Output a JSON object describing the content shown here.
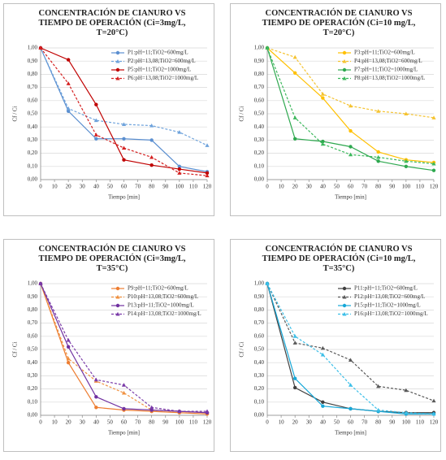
{
  "chart_data": [
    {
      "type": "line",
      "title": "CONCENTRACIÓN DE CIANURO VS TIEMPO DE OPERACIÓN (Ci=3mg/L, T=20°C)",
      "xlabel": "Tiempo [min]",
      "ylabel": "Cf / Ci",
      "x": [
        0,
        20,
        40,
        60,
        80,
        100,
        120
      ],
      "xlim": [
        0,
        120
      ],
      "xticks": [
        0,
        10,
        20,
        30,
        40,
        50,
        60,
        70,
        80,
        90,
        100,
        110,
        120
      ],
      "ylim": [
        0,
        1
      ],
      "yticks": [
        {
          "value": 0,
          "label": "0,00"
        },
        {
          "value": 0.1,
          "label": "0,10"
        },
        {
          "value": 0.2,
          "label": "0,20"
        },
        {
          "value": 0.3,
          "label": "0,30"
        },
        {
          "value": 0.4,
          "label": "0,40"
        },
        {
          "value": 0.5,
          "label": "0,50"
        },
        {
          "value": 0.6,
          "label": "0,60"
        },
        {
          "value": 0.7,
          "label": "0,70"
        },
        {
          "value": 0.8,
          "label": "0,80"
        },
        {
          "value": 0.9,
          "label": "0,90"
        },
        {
          "value": 1,
          "label": "1,00"
        }
      ],
      "grid": true,
      "legend": "upper right",
      "series": [
        {
          "name": "P1:pH=11;TiO2=600mg/L",
          "color": "#5b8fd0",
          "dashed": false,
          "marker": "circle",
          "values": [
            1.0,
            0.52,
            0.31,
            0.31,
            0.3,
            0.1,
            0.06
          ]
        },
        {
          "name": "P2:pH=13,08;TiO2=600mg/L",
          "color": "#6fa3dc",
          "dashed": true,
          "marker": "triangle",
          "values": [
            1.0,
            0.54,
            0.45,
            0.42,
            0.41,
            0.36,
            0.26
          ]
        },
        {
          "name": "P5:pH=11;TiO2=1000mg/L",
          "color": "#c00000",
          "dashed": false,
          "marker": "circle",
          "values": [
            1.0,
            0.91,
            0.57,
            0.15,
            0.11,
            0.08,
            0.05
          ]
        },
        {
          "name": "P6:pH=13,08;TiO2=1000mg/L",
          "color": "#d42020",
          "dashed": true,
          "marker": "triangle",
          "values": [
            1.0,
            0.73,
            0.34,
            0.24,
            0.17,
            0.05,
            0.03
          ]
        }
      ]
    },
    {
      "type": "line",
      "title": "CONCENTRACIÓN DE CIANURO VS TIEMPO DE OPERACIÓN (Ci=10 mg/L, T=20°C)",
      "xlabel": "Tiempo [min]",
      "ylabel": "Cf / Ci",
      "x": [
        0,
        20,
        40,
        60,
        80,
        100,
        120
      ],
      "xlim": [
        0,
        120
      ],
      "xticks": [
        0,
        10,
        20,
        30,
        40,
        50,
        60,
        70,
        80,
        90,
        100,
        110,
        120
      ],
      "ylim": [
        0,
        1
      ],
      "yticks": [
        {
          "value": 0,
          "label": "0,00"
        },
        {
          "value": 0.1,
          "label": "0,10"
        },
        {
          "value": 0.2,
          "label": "0,20"
        },
        {
          "value": 0.3,
          "label": "0,30"
        },
        {
          "value": 0.4,
          "label": "0,40"
        },
        {
          "value": 0.5,
          "label": "0,50"
        },
        {
          "value": 0.6,
          "label": "0,60"
        },
        {
          "value": 0.7,
          "label": "0,70"
        },
        {
          "value": 0.8,
          "label": "0,80"
        },
        {
          "value": 0.9,
          "label": "0,90"
        },
        {
          "value": 1,
          "label": "1,00"
        }
      ],
      "grid": true,
      "legend": "upper right",
      "series": [
        {
          "name": "P3:pH=11;TiO2=600mg/L",
          "color": "#ffc000",
          "dashed": false,
          "marker": "circle",
          "values": [
            1.0,
            0.81,
            0.62,
            0.37,
            0.21,
            0.15,
            0.13
          ]
        },
        {
          "name": "P4:pH=13,08;TiO2=600mg/L",
          "color": "#f5c330",
          "dashed": true,
          "marker": "triangle",
          "values": [
            1.0,
            0.93,
            0.65,
            0.56,
            0.52,
            0.5,
            0.47
          ]
        },
        {
          "name": "P7:pH=11;TiO2=1000mg/L",
          "color": "#2ea84f",
          "dashed": false,
          "marker": "circle",
          "values": [
            1.0,
            0.31,
            0.29,
            0.25,
            0.14,
            0.1,
            0.07
          ]
        },
        {
          "name": "P8:pH=13,08;TiO2=1000mg/L",
          "color": "#3cb85c",
          "dashed": true,
          "marker": "triangle",
          "values": [
            1.0,
            0.47,
            0.27,
            0.19,
            0.17,
            0.14,
            0.12
          ]
        }
      ]
    },
    {
      "type": "line",
      "title": "CONCENTRACIÓN DE CIANURO VS TIEMPO DE OPERACIÓN (Ci=3mg/L, T=35°C)",
      "xlabel": "Tiempo [min]",
      "ylabel": "Cf / Ci",
      "x": [
        0,
        20,
        40,
        60,
        80,
        100,
        120
      ],
      "xlim": [
        0,
        120
      ],
      "xticks": [
        0,
        10,
        20,
        30,
        40,
        50,
        60,
        70,
        80,
        90,
        100,
        110,
        120
      ],
      "ylim": [
        0,
        1
      ],
      "yticks": [
        {
          "value": 0,
          "label": "0,00"
        },
        {
          "value": 0.1,
          "label": "0,10"
        },
        {
          "value": 0.2,
          "label": "0,20"
        },
        {
          "value": 0.3,
          "label": "0,30"
        },
        {
          "value": 0.4,
          "label": "0,40"
        },
        {
          "value": 0.5,
          "label": "0,50"
        },
        {
          "value": 0.6,
          "label": "0,60"
        },
        {
          "value": 0.7,
          "label": "0,70"
        },
        {
          "value": 0.8,
          "label": "0,80"
        },
        {
          "value": 0.9,
          "label": "0,90"
        },
        {
          "value": 1,
          "label": "1,00"
        }
      ],
      "grid": true,
      "legend": "upper right",
      "series": [
        {
          "name": "P9:pH=11;TiO2=600mg/L",
          "color": "#ed7d31",
          "dashed": false,
          "marker": "circle",
          "values": [
            1.0,
            0.4,
            0.06,
            0.04,
            0.03,
            0.02,
            0.01
          ]
        },
        {
          "name": "P10:pH=13,08;TiO2=600mg/L",
          "color": "#f0903f",
          "dashed": true,
          "marker": "triangle",
          "values": [
            1.0,
            0.43,
            0.26,
            0.17,
            0.04,
            0.03,
            0.02
          ]
        },
        {
          "name": "P13:pH=11;TiO2=1000mg/L",
          "color": "#7030a0",
          "dashed": false,
          "marker": "circle",
          "values": [
            1.0,
            0.52,
            0.14,
            0.05,
            0.04,
            0.03,
            0.02
          ]
        },
        {
          "name": "P14:pH=13,08;TiO2=1000mg/L",
          "color": "#7a3aa8",
          "dashed": true,
          "marker": "triangle",
          "values": [
            1.0,
            0.57,
            0.27,
            0.23,
            0.06,
            0.03,
            0.03
          ]
        }
      ]
    },
    {
      "type": "line",
      "title": "CONCENTRACIÓN DE CIANURO VS TIEMPO DE OPERACIÓN (Ci=10 mg/L, T=35°C)",
      "xlabel": "Tiempo [min]",
      "ylabel": "Cf / Ci",
      "x": [
        0,
        20,
        40,
        60,
        80,
        100,
        120
      ],
      "xlim": [
        0,
        120
      ],
      "xticks": [
        0,
        10,
        20,
        30,
        40,
        50,
        60,
        70,
        80,
        90,
        100,
        110,
        120
      ],
      "ylim": [
        0,
        1
      ],
      "yticks": [
        {
          "value": 0,
          "label": "0,00"
        },
        {
          "value": 0.1,
          "label": "0,10"
        },
        {
          "value": 0.2,
          "label": "0,20"
        },
        {
          "value": 0.3,
          "label": "0,30"
        },
        {
          "value": 0.4,
          "label": "0,40"
        },
        {
          "value": 0.5,
          "label": "0,50"
        },
        {
          "value": 0.6,
          "label": "0,60"
        },
        {
          "value": 0.7,
          "label": "0,70"
        },
        {
          "value": 0.8,
          "label": "0,80"
        },
        {
          "value": 0.9,
          "label": "0,90"
        },
        {
          "value": 1,
          "label": "1,00"
        }
      ],
      "grid": true,
      "legend": "upper right",
      "series": [
        {
          "name": "P11:pH=11;TiO2=600mg/L",
          "color": "#404040",
          "dashed": false,
          "marker": "circle",
          "values": [
            1.0,
            0.21,
            0.1,
            0.05,
            0.03,
            0.02,
            0.02
          ]
        },
        {
          "name": "P12:pH=13,08;TiO2=600mg/L",
          "color": "#595959",
          "dashed": true,
          "marker": "triangle",
          "values": [
            1.0,
            0.55,
            0.51,
            0.42,
            0.22,
            0.19,
            0.11
          ]
        },
        {
          "name": "P15:pH=11;TiO2=1000mg/L",
          "color": "#17a8d8",
          "dashed": false,
          "marker": "circle",
          "values": [
            1.0,
            0.28,
            0.07,
            0.05,
            0.03,
            0.01,
            0.01
          ]
        },
        {
          "name": "P16:pH=13,08;TiO2=1000mg/L",
          "color": "#3cbfe8",
          "dashed": true,
          "marker": "triangle",
          "values": [
            1.0,
            0.6,
            0.46,
            0.23,
            0.04,
            0.02,
            0.01
          ]
        }
      ]
    }
  ]
}
